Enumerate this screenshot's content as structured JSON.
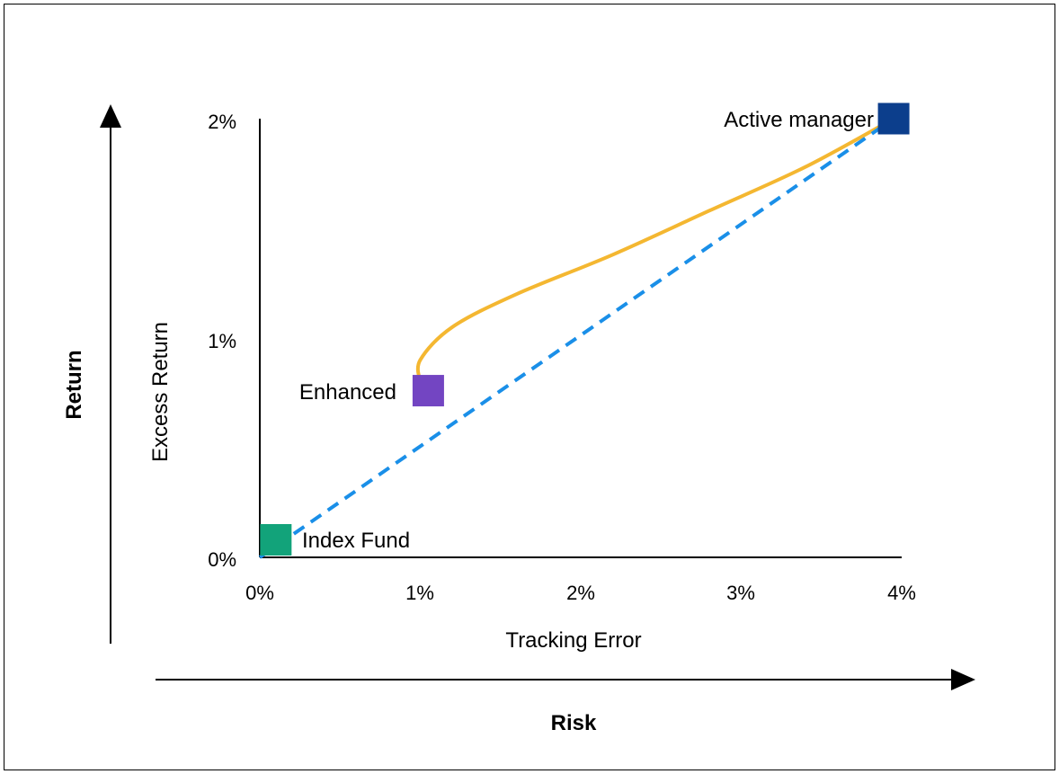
{
  "chart_data": {
    "type": "scatter",
    "xlabel": "Tracking Error",
    "ylabel": "Excess Return",
    "outer_xlabel": "Risk",
    "outer_ylabel": "Return",
    "xlim": [
      0,
      4
    ],
    "ylim": [
      0,
      2
    ],
    "x_ticks": [
      "0%",
      "1%",
      "2%",
      "3%",
      "4%"
    ],
    "y_ticks": [
      "0%",
      "1%",
      "2%"
    ],
    "points": [
      {
        "label": "Index Fund",
        "x": 0.1,
        "y": 0.08,
        "color": "#12a37a"
      },
      {
        "label": "Enhanced",
        "x": 1.05,
        "y": 0.76,
        "color": "#7345c2"
      },
      {
        "label": "Active manager",
        "x": 3.95,
        "y": 2.0,
        "color": "#0c3e8c"
      }
    ],
    "curve": {
      "color": "#f4b731",
      "points": [
        [
          1.0,
          0.8
        ],
        [
          1.0,
          0.9
        ],
        [
          1.2,
          1.05
        ],
        [
          1.6,
          1.2
        ],
        [
          2.2,
          1.38
        ],
        [
          2.8,
          1.58
        ],
        [
          3.4,
          1.78
        ],
        [
          3.95,
          2.0
        ]
      ]
    },
    "line": {
      "color": "#1a8fe8",
      "style": "dashed",
      "points": [
        [
          0,
          0
        ],
        [
          3.95,
          2.0
        ]
      ]
    }
  }
}
